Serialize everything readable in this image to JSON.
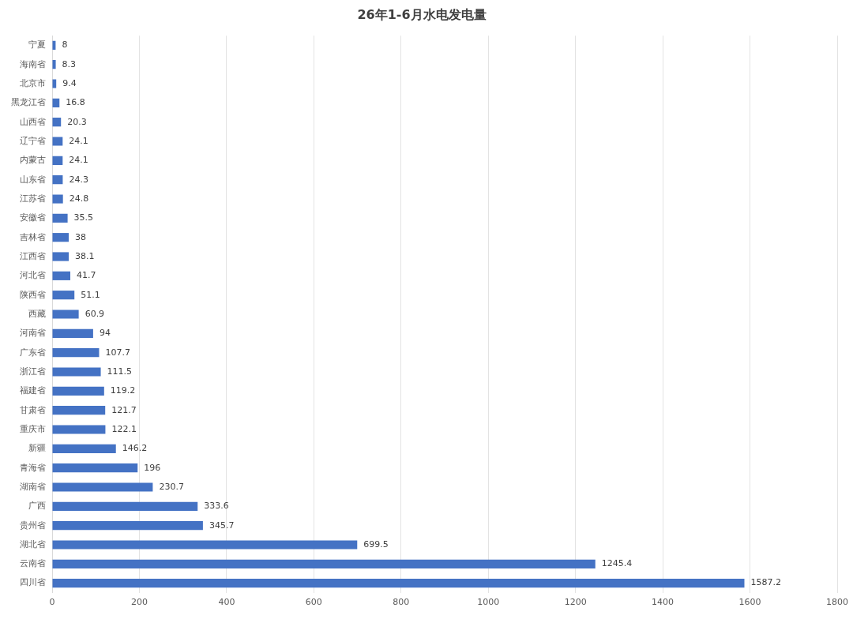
{
  "chart_data": {
    "type": "bar",
    "title": "26年1-6月水电发电量",
    "orientation": "horizontal",
    "categories": [
      "宁夏",
      "海南省",
      "北京市",
      "黑龙江省",
      "山西省",
      "辽宁省",
      "内蒙古",
      "山东省",
      "江苏省",
      "安徽省",
      "吉林省",
      "江西省",
      "河北省",
      "陕西省",
      "西藏",
      "河南省",
      "广东省",
      "浙江省",
      "福建省",
      "甘肃省",
      "重庆市",
      "新疆",
      "青海省",
      "湖南省",
      "广西",
      "贵州省",
      "湖北省",
      "云南省",
      "四川省"
    ],
    "values": [
      8,
      8.3,
      9.4,
      16.8,
      20.3,
      24.1,
      24.1,
      24.3,
      24.8,
      35.5,
      38,
      38.1,
      41.7,
      51.1,
      60.9,
      94,
      107.7,
      111.5,
      119.2,
      121.7,
      122.1,
      146.2,
      196,
      230.7,
      333.6,
      345.7,
      699.5,
      1245.4,
      1587.2
    ],
    "color": "#4472c4",
    "xlim": [
      0,
      1800
    ],
    "xticks": [
      0,
      200,
      400,
      600,
      800,
      1000,
      1200,
      1400,
      1600,
      1800
    ],
    "grid": "x",
    "data_labels": true
  }
}
